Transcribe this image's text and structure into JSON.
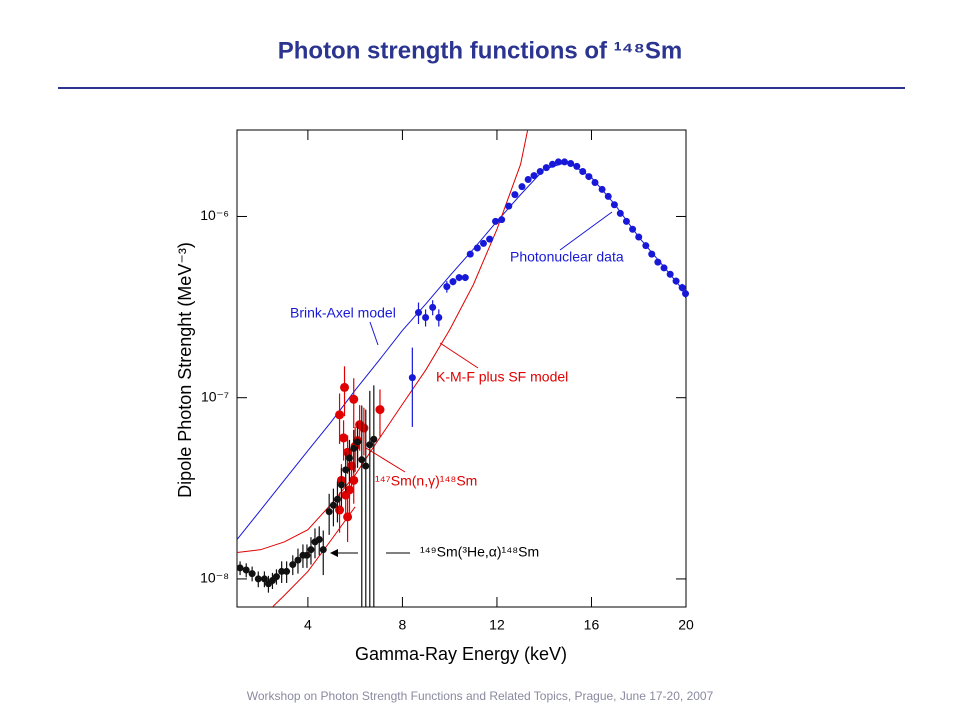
{
  "chart_data": {
    "type": "scatter",
    "title": "Photon strength functions of ¹⁴⁸Sm",
    "x_label": "Gamma-Ray Energy (keV)",
    "y_label": "Dipole Photon Strenght (MeV⁻³)",
    "footer": "Workshop on Photon Strength Functions and Related Topics, Prague, June 17-20, 2007",
    "log_y": true,
    "xlim": [
      1,
      20
    ],
    "ylim": [
      7e-09,
      3e-06
    ],
    "xticks": [
      4,
      8,
      12,
      16,
      20
    ],
    "yticks": [
      {
        "value": 1e-08,
        "label": "10⁻⁸"
      },
      {
        "value": 1e-07,
        "label": "10⁻⁷"
      },
      {
        "value": 1e-06,
        "label": "10⁻⁶"
      }
    ],
    "series": [
      {
        "color": "#1818d8",
        "x": [
          8.42,
          8.68,
          8.98,
          9.28,
          9.54,
          9.88,
          10.14,
          10.4,
          10.66,
          10.87,
          11.17,
          11.43,
          11.69,
          11.94,
          12.2,
          12.5,
          12.76,
          13.06,
          13.32,
          13.57,
          13.83,
          14.09,
          14.35,
          14.6,
          14.86,
          15.12,
          15.38,
          15.63,
          15.89,
          16.15,
          16.45,
          16.71,
          16.97,
          17.22,
          17.48,
          17.74,
          18.0,
          18.3,
          18.55,
          18.81,
          19.07,
          19.33,
          19.58,
          19.84,
          19.98
        ],
        "values": [
          1.29e-07,
          2.95e-07,
          2.77e-07,
          3.15e-07,
          2.77e-07,
          4.1e-07,
          4.37e-07,
          4.6e-07,
          4.6e-07,
          6.2e-07,
          6.7e-07,
          7.1e-07,
          7.5e-07,
          9.4e-07,
          9.6e-07,
          1.14e-06,
          1.32e-06,
          1.46e-06,
          1.6e-06,
          1.68e-06,
          1.77e-06,
          1.86e-06,
          1.94e-06,
          2e-06,
          2e-06,
          1.96e-06,
          1.89e-06,
          1.77e-06,
          1.66e-06,
          1.54e-06,
          1.41e-06,
          1.29e-06,
          1.16e-06,
          1.04e-06,
          9.4e-07,
          8.5e-07,
          7.7e-07,
          6.9e-07,
          6.2e-07,
          5.6e-07,
          5.2e-07,
          4.8e-07,
          4.4e-07,
          4.05e-07,
          3.75e-07
        ],
        "errors": [
          6e-08,
          4e-08,
          3e-08,
          3e-08,
          3e-08,
          3e-08,
          2e-08,
          2e-08,
          2e-08,
          2e-08,
          2e-08,
          2e-08,
          2e-08,
          3e-08,
          3e-08,
          3e-08,
          3e-08,
          3e-08,
          3e-08,
          3e-08,
          3e-08,
          3e-08,
          3e-08,
          3e-08,
          3e-08,
          3e-08,
          3e-08,
          3e-08,
          3e-08,
          3e-08,
          3e-08,
          3e-08,
          3e-08,
          2e-08,
          2e-08,
          2e-08,
          2e-08,
          2e-08,
          2e-08,
          2e-08,
          2e-08,
          2e-08,
          2e-08,
          2e-08,
          2e-08
        ]
      },
      {
        "color": "#e00000",
        "x": [
          5.34,
          5.55,
          5.94,
          6.19,
          6.37,
          7.05,
          5.51,
          5.68,
          5.85,
          6.0,
          5.42,
          5.6,
          5.76,
          5.34,
          5.68,
          5.94,
          6.1
        ],
        "values": [
          8.05e-08,
          1.14e-07,
          9.8e-08,
          7.1e-08,
          6.8e-08,
          8.6e-08,
          6e-08,
          5e-08,
          4.2e-08,
          5.4e-08,
          3.5e-08,
          2.9e-08,
          3.1e-08,
          2.4e-08,
          2.2e-08,
          3.5e-08,
          5.8e-08
        ],
        "errors": [
          2.5e-08,
          3.5e-08,
          3e-08,
          2e-08,
          2e-08,
          2.5e-08,
          1.5e-08,
          1.2e-08,
          1e-08,
          1.5e-08,
          8e-09,
          7e-09,
          8e-09,
          6e-09,
          6e-09,
          9e-09,
          1.5e-08
        ]
      },
      {
        "color": "#111111",
        "x": [
          1.13,
          1.39,
          1.64,
          1.9,
          2.16,
          2.33,
          2.5,
          2.67,
          2.89,
          3.1,
          3.36,
          3.58,
          3.79,
          3.96,
          4.13,
          4.3,
          4.48,
          4.65,
          4.9,
          5.08,
          5.25,
          5.42,
          5.6,
          5.76,
          5.94,
          6.1,
          6.28,
          6.45,
          6.62,
          6.79
        ],
        "values": [
          1.15e-08,
          1.12e-08,
          1.07e-08,
          1e-08,
          1e-08,
          9.4e-09,
          9.8e-09,
          1.03e-08,
          1.1e-08,
          1.1e-08,
          1.2e-08,
          1.27e-08,
          1.35e-08,
          1.35e-08,
          1.45e-08,
          1.6e-08,
          1.65e-08,
          1.45e-08,
          2.35e-08,
          2.55e-08,
          2.75e-08,
          3.3e-08,
          4e-08,
          4.65e-08,
          5.25e-08,
          5.7e-08,
          4.55e-08,
          4.2e-08,
          5.5e-08,
          5.9e-08
        ],
        "errors": [
          1e-09,
          1e-09,
          1e-09,
          1e-09,
          1e-09,
          1e-09,
          1e-09,
          1e-09,
          1.5e-09,
          1.5e-09,
          1.5e-09,
          2e-09,
          2e-09,
          2e-09,
          2.5e-09,
          3e-09,
          3e-09,
          4e-09,
          6e-09,
          6e-09,
          7e-09,
          8e-09,
          1e-08,
          1.2e-08,
          1.4e-08,
          1.6e-08,
          4.5e-08,
          4.4e-08,
          5.4e-08,
          5.8e-08
        ]
      }
    ],
    "curves": [
      {
        "color": "#1818d8",
        "x": [
          1,
          2,
          3,
          4,
          5,
          6,
          7,
          8,
          9,
          10,
          11,
          12,
          13,
          14,
          15,
          16,
          17,
          18,
          19,
          20
        ],
        "values": [
          1.65e-08,
          2.4e-08,
          3.5e-08,
          5.1e-08,
          7.4e-08,
          1.1e-07,
          1.6e-07,
          2.35e-07,
          3.3e-07,
          4.7e-07,
          6.6e-07,
          9.4e-07,
          1.32e-06,
          1.82e-06,
          2e-06,
          1.64e-06,
          1.16e-06,
          7.7e-07,
          5.4e-07,
          3.75e-07
        ]
      },
      {
        "color": "#e00000",
        "x": [
          1,
          2,
          3,
          4,
          5,
          6,
          7,
          8,
          9,
          10,
          11,
          12,
          13,
          13.3
        ],
        "values": [
          1.4e-08,
          1.45e-08,
          1.6e-08,
          1.87e-08,
          2.6e-08,
          3.75e-08,
          5.9e-08,
          9.2e-08,
          1.43e-07,
          2.37e-07,
          4.2e-07,
          8.5e-07,
          1.94e-06,
          3e-06
        ]
      },
      {
        "color": "#e00000",
        "x": [
          2.5,
          3,
          4,
          5,
          6
        ],
        "values": [
          7e-09,
          8.1e-09,
          1.1e-08,
          1.65e-08,
          2.5e-08
        ]
      }
    ],
    "annotations": [
      "Photonuclear data",
      "Brink-Axel model",
      "K-M-F plus SF model",
      "¹⁴⁷Sm(n,γ)¹⁴⁸Sm",
      "¹⁴⁹Sm(³He,α)¹⁴⁸Sm"
    ]
  }
}
